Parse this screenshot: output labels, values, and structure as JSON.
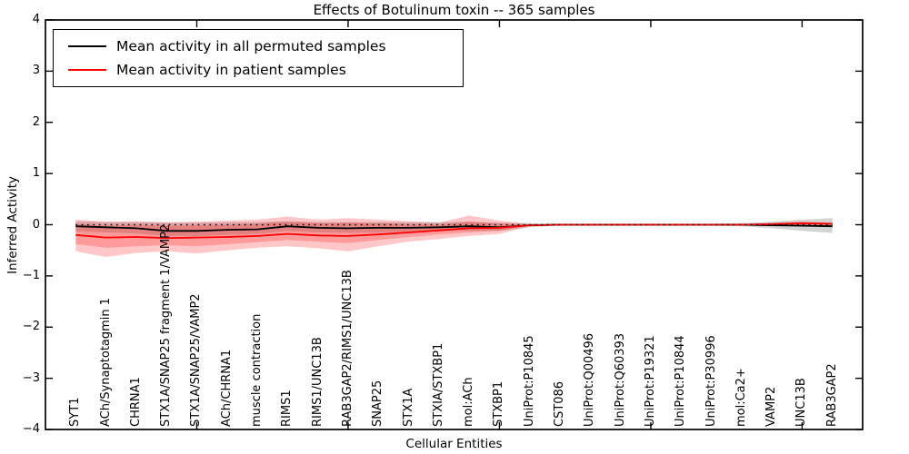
{
  "chart_data": {
    "type": "line",
    "title": "Effects of Botulinum toxin -- 365 samples",
    "xlabel": "Cellular Entities",
    "ylabel": "Inferred Activity",
    "ylim": [
      -4,
      4
    ],
    "yticks": [
      4,
      3,
      2,
      1,
      0,
      -1,
      -2,
      -3,
      -4
    ],
    "xticks_major": [
      5,
      10,
      15,
      20,
      25
    ],
    "grid": false,
    "legend_position": "upper-left",
    "categories": [
      "SYT1",
      "ACh/Synaptotagmin 1",
      "CHRNA1",
      "STX1A/SNAP25 fragment 1/VAMP2",
      "STX1A/SNAP25/VAMP2",
      "ACh/CHRNA1",
      "muscle contraction",
      "RIMS1",
      "RIMS1/UNC13B",
      "RAB3GAP2/RIMS1/UNC13B",
      "SNAP25",
      "STX1A",
      "STXIA/STXBP1",
      "mol:ACh",
      "STXBP1",
      "UniProt:P10845",
      "CST086",
      "UniProt:Q00496",
      "UniProt:Q60393",
      "UniProt:P19321",
      "UniProt:P10844",
      "UniProt:P30996",
      "mol:Ca2+",
      "VAMP2",
      "UNC13B",
      "RAB3GAP2"
    ],
    "series": [
      {
        "name": "Mean activity in all permuted samples",
        "color": "#000000",
        "values": [
          -0.03,
          -0.05,
          -0.07,
          -0.12,
          -0.12,
          -0.1,
          -0.09,
          -0.03,
          -0.06,
          -0.07,
          -0.06,
          -0.06,
          -0.05,
          -0.03,
          -0.05,
          -0.01,
          0,
          0,
          0,
          0,
          0,
          0,
          0,
          -0.01,
          -0.02,
          -0.03
        ]
      },
      {
        "name": "Mean activity in patient samples",
        "color": "#ff0000",
        "values": [
          -0.2,
          -0.25,
          -0.24,
          -0.26,
          -0.25,
          -0.24,
          -0.22,
          -0.18,
          -0.21,
          -0.22,
          -0.19,
          -0.15,
          -0.11,
          -0.07,
          -0.06,
          -0.01,
          0,
          0,
          0,
          0,
          0,
          0,
          0,
          0.01,
          0.03,
          0.02
        ]
      }
    ],
    "bands": [
      {
        "name": "permuted-range",
        "color": "#808080",
        "opacity": 0.35,
        "hi": [
          0.07,
          0.05,
          0.05,
          0.04,
          0.04,
          0.05,
          0.05,
          0.07,
          0.05,
          0.05,
          0.05,
          0.05,
          0.05,
          0.06,
          0.04,
          0.03,
          0.02,
          0.02,
          0.02,
          0.02,
          0.02,
          0.02,
          0.03,
          0.06,
          0.1,
          0.13
        ],
        "lo": [
          -0.13,
          -0.15,
          -0.17,
          -0.22,
          -0.22,
          -0.2,
          -0.18,
          -0.12,
          -0.15,
          -0.16,
          -0.15,
          -0.14,
          -0.13,
          -0.11,
          -0.12,
          -0.05,
          -0.02,
          -0.02,
          -0.02,
          -0.02,
          -0.02,
          -0.02,
          -0.03,
          -0.07,
          -0.12,
          -0.16
        ]
      },
      {
        "name": "patient-range-outer",
        "color": "#ff0000",
        "opacity": 0.22,
        "hi": [
          0.1,
          0.06,
          0.07,
          0.05,
          0.06,
          0.08,
          0.1,
          0.16,
          0.1,
          0.13,
          0.1,
          0.07,
          0.04,
          0.18,
          0.08,
          0.01,
          0.01,
          0.01,
          0.01,
          0.01,
          0.01,
          0.01,
          0.01,
          0.04,
          0.06,
          0.04
        ],
        "lo": [
          -0.52,
          -0.63,
          -0.55,
          -0.52,
          -0.56,
          -0.5,
          -0.45,
          -0.42,
          -0.46,
          -0.52,
          -0.42,
          -0.33,
          -0.28,
          -0.22,
          -0.18,
          -0.03,
          -0.01,
          -0.01,
          -0.01,
          -0.01,
          -0.01,
          -0.01,
          -0.01,
          -0.02,
          -0.03,
          -0.03
        ],
        "note": ""
      },
      {
        "name": "patient-range-inner",
        "color": "#ff0000",
        "opacity": 0.22,
        "hi": [
          0.02,
          -0.02,
          0.0,
          -0.02,
          -0.01,
          0.0,
          0.02,
          0.06,
          0.03,
          0.04,
          0.03,
          0.01,
          0.0,
          0.06,
          0.02,
          0.0,
          0,
          0,
          0,
          0,
          0,
          0,
          0,
          0.02,
          0.04,
          0.03
        ],
        "lo": [
          -0.38,
          -0.45,
          -0.42,
          -0.4,
          -0.42,
          -0.38,
          -0.34,
          -0.3,
          -0.33,
          -0.36,
          -0.3,
          -0.24,
          -0.19,
          -0.15,
          -0.12,
          -0.02,
          0,
          0,
          0,
          0,
          0,
          0,
          0,
          -0.01,
          -0.02,
          -0.02
        ]
      }
    ],
    "zero_line": {
      "value": 0,
      "style": "dotted",
      "color": "#000000"
    }
  }
}
